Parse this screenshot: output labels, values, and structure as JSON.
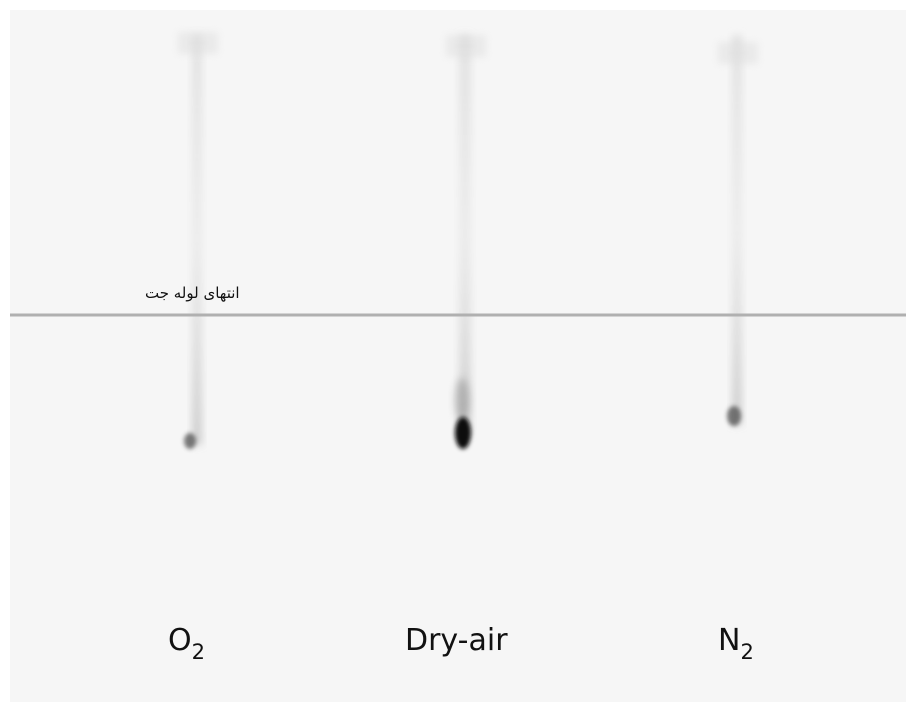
{
  "annotation": "انتهای لوله جت",
  "labels": [
    {
      "text": "O",
      "subscript": "2"
    },
    {
      "text": "Dry-air"
    },
    {
      "text": "N",
      "subscript": "2"
    }
  ]
}
